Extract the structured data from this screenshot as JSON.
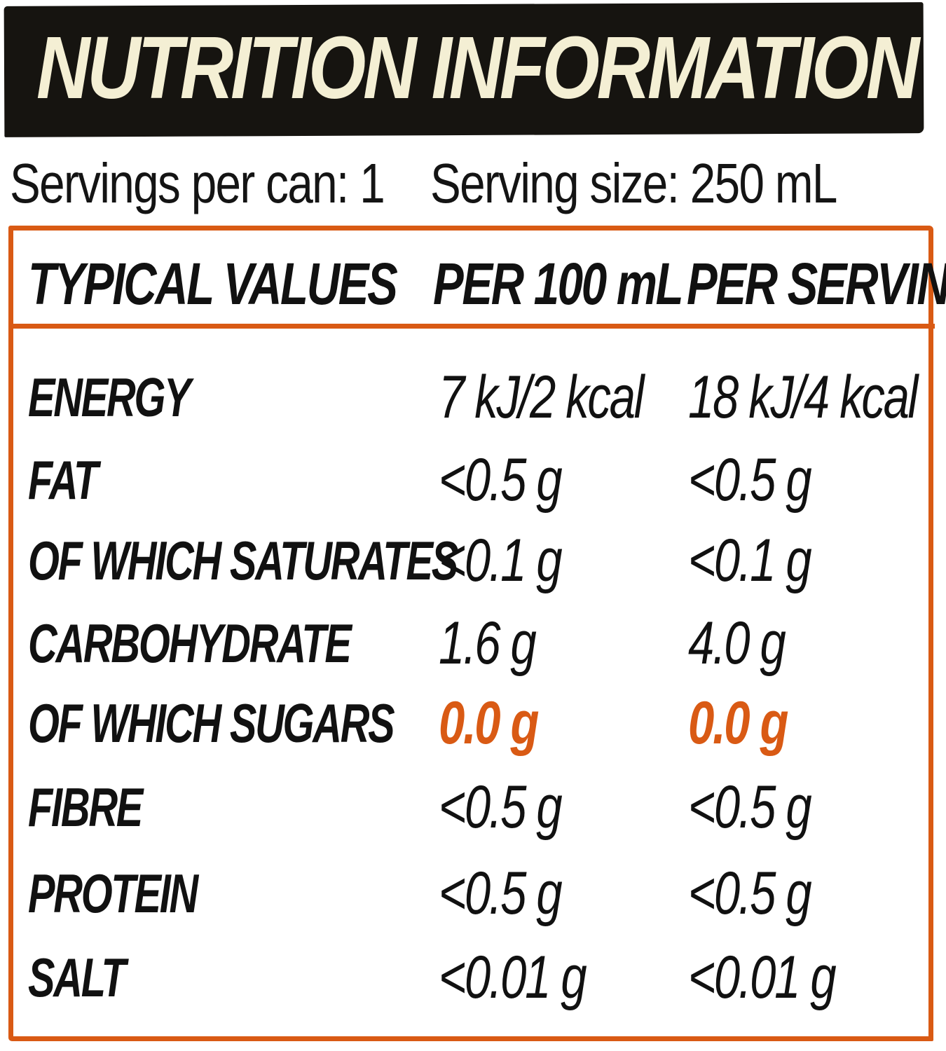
{
  "title": "NUTRITION INFORMATION",
  "servings_per_can": "Servings per can: 1",
  "serving_size": "Serving size: 250 mL",
  "accent_color": "#d95a14",
  "banner_color": "#161410",
  "title_color": "#f4efd4",
  "table": {
    "headers": [
      "TYPICAL VALUES",
      "PER 100 mL",
      "PER SERVING"
    ],
    "rows": [
      {
        "name": "ENERGY",
        "per_100ml": "7 kJ/2 kcal",
        "per_serving": "18 kJ/4 kcal"
      },
      {
        "name": "FAT",
        "per_100ml": "<0.5 g",
        "per_serving": "<0.5 g"
      },
      {
        "name": "OF WHICH SATURATES",
        "per_100ml": "<0.1 g",
        "per_serving": "<0.1 g"
      },
      {
        "name": "CARBOHYDRATE",
        "per_100ml": "1.6 g",
        "per_serving": "4.0 g"
      },
      {
        "name": "OF WHICH SUGARS",
        "per_100ml": "0.0 g",
        "per_serving": "0.0 g",
        "highlight": true
      },
      {
        "name": "FIBRE",
        "per_100ml": "<0.5 g",
        "per_serving": "<0.5 g"
      },
      {
        "name": "PROTEIN",
        "per_100ml": "<0.5 g",
        "per_serving": "<0.5 g"
      },
      {
        "name": "SALT",
        "per_100ml": "<0.01 g",
        "per_serving": "<0.01 g"
      }
    ]
  }
}
